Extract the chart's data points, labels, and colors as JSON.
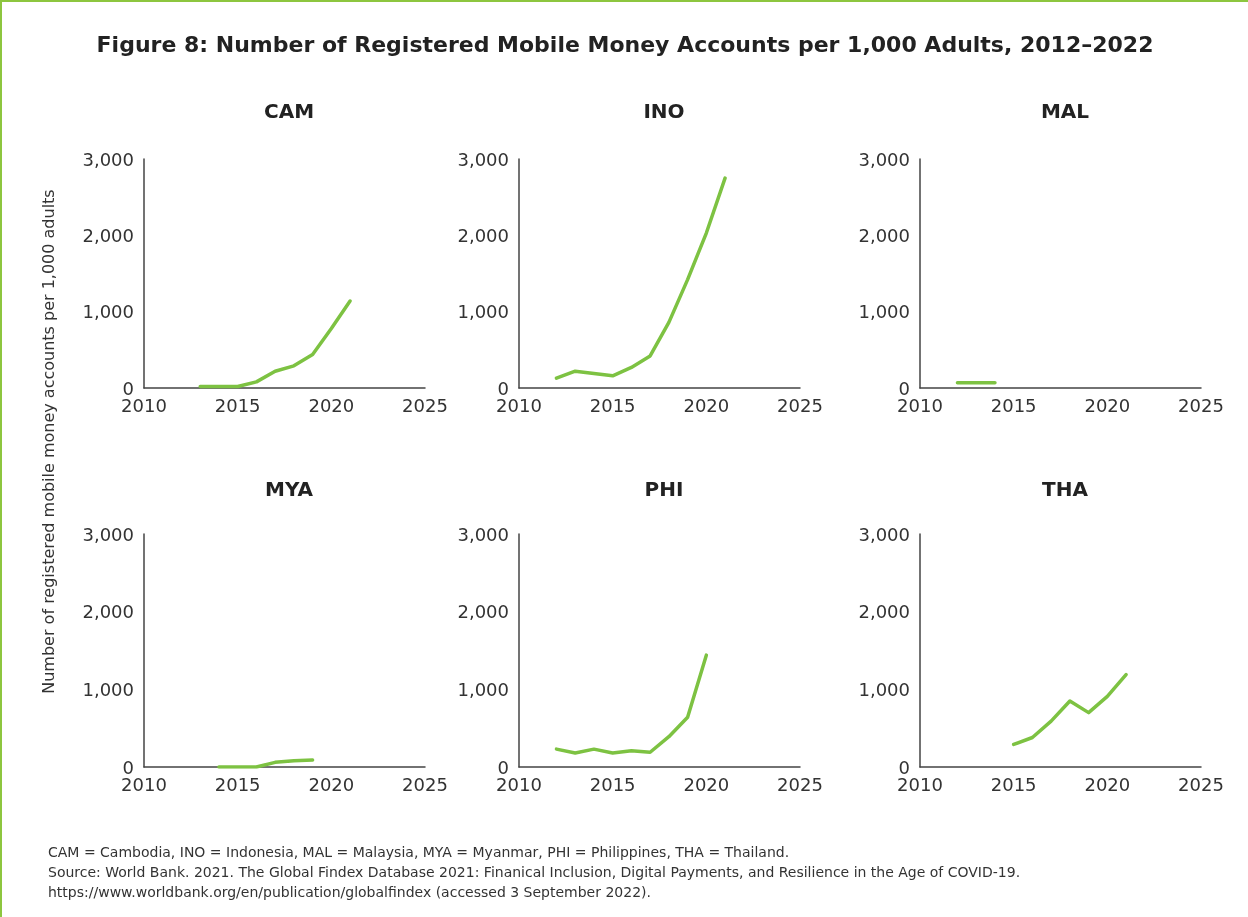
{
  "chart_data": [
    {
      "type": "other",
      "title": "Figure 8: Number of Registered Mobile Money Accounts per 1,000 Adults, 2012–2022"
    },
    {
      "type": "line",
      "title": "CAM",
      "ylabel": "Number of registered mobile money accounts per 1,000 adults",
      "x": [
        2013,
        2014,
        2015,
        2016,
        2017,
        2018,
        2019,
        2020,
        2021
      ],
      "values": [
        20,
        20,
        20,
        80,
        220,
        290,
        440,
        780,
        1140
      ],
      "color": "#7dc242",
      "xlim": [
        2010,
        2025
      ],
      "xticks": [
        2010,
        2015,
        2020,
        2025
      ],
      "ylim": [
        0,
        3000
      ],
      "yticks": [
        {
          "value": 0,
          "label": "0"
        },
        {
          "value": 1000,
          "label": "1,000"
        },
        {
          "value": 2000,
          "label": "2,000"
        },
        {
          "value": 3000,
          "label": "3,000"
        }
      ],
      "grid": false
    },
    {
      "type": "line",
      "title": "INO",
      "x": [
        2012,
        2013,
        2014,
        2015,
        2016,
        2017,
        2018,
        2019,
        2020,
        2021
      ],
      "values": [
        130,
        220,
        190,
        160,
        270,
        420,
        860,
        1420,
        2030,
        2750
      ],
      "color": "#7dc242",
      "xlim": [
        2010,
        2025
      ],
      "xticks": [
        2010,
        2015,
        2020,
        2025
      ],
      "ylim": [
        0,
        3000
      ],
      "yticks": [
        {
          "value": 0,
          "label": "0"
        },
        {
          "value": 1000,
          "label": "1,000"
        },
        {
          "value": 2000,
          "label": "2,000"
        },
        {
          "value": 3000,
          "label": "3,000"
        }
      ],
      "grid": false
    },
    {
      "type": "line",
      "title": "MAL",
      "x": [
        2012,
        2013,
        2014
      ],
      "values": [
        70,
        70,
        70
      ],
      "color": "#7dc242",
      "xlim": [
        2010,
        2025
      ],
      "xticks": [
        2010,
        2015,
        2020,
        2025
      ],
      "ylim": [
        0,
        3000
      ],
      "yticks": [
        {
          "value": 0,
          "label": "0"
        },
        {
          "value": 1000,
          "label": "1,000"
        },
        {
          "value": 2000,
          "label": "2,000"
        },
        {
          "value": 3000,
          "label": "3,000"
        }
      ],
      "grid": false
    },
    {
      "type": "line",
      "title": "MYA",
      "x": [
        2014,
        2015,
        2016,
        2017,
        2018,
        2019
      ],
      "values": [
        0,
        0,
        0,
        60,
        80,
        90
      ],
      "color": "#7dc242",
      "xlim": [
        2010,
        2025
      ],
      "xticks": [
        2010,
        2015,
        2020,
        2025
      ],
      "ylim": [
        0,
        3000
      ],
      "yticks": [
        {
          "value": 0,
          "label": "0"
        },
        {
          "value": 1000,
          "label": "1,000"
        },
        {
          "value": 2000,
          "label": "2,000"
        },
        {
          "value": 3000,
          "label": "3,000"
        }
      ],
      "grid": false
    },
    {
      "type": "line",
      "title": "PHI",
      "x": [
        2012,
        2013,
        2014,
        2015,
        2016,
        2017,
        2018,
        2019,
        2020
      ],
      "values": [
        230,
        180,
        230,
        180,
        210,
        190,
        390,
        640,
        1440
      ],
      "color": "#7dc242",
      "xlim": [
        2010,
        2025
      ],
      "xticks": [
        2010,
        2015,
        2020,
        2025
      ],
      "ylim": [
        0,
        3000
      ],
      "yticks": [
        {
          "value": 0,
          "label": "0"
        },
        {
          "value": 1000,
          "label": "1,000"
        },
        {
          "value": 2000,
          "label": "2,000"
        },
        {
          "value": 3000,
          "label": "3,000"
        }
      ],
      "grid": false
    },
    {
      "type": "line",
      "title": "THA",
      "x": [
        2015,
        2016,
        2017,
        2018,
        2019,
        2020,
        2021
      ],
      "values": [
        290,
        380,
        590,
        850,
        700,
        910,
        1190
      ],
      "color": "#7dc242",
      "xlim": [
        2010,
        2025
      ],
      "xticks": [
        2010,
        2015,
        2020,
        2025
      ],
      "ylim": [
        0,
        3000
      ],
      "yticks": [
        {
          "value": 0,
          "label": "0"
        },
        {
          "value": 1000,
          "label": "1,000"
        },
        {
          "value": 2000,
          "label": "2,000"
        },
        {
          "value": 3000,
          "label": "3,000"
        }
      ],
      "grid": false
    },
    {
      "type": "other",
      "annotations": [
        "CAM = Cambodia, INO = Indonesia, MAL = Malaysia, MYA = Myanmar, PHI = Philippines, THA = Thailand.",
        "Source: World Bank. 2021. The Global Findex Database 2021: Finanical Inclusion, Digital Payments, and Resilience in the Age of COVID-19.",
        "https://www.worldbank.org/en/publication/globalfindex (accessed 3 September 2022)."
      ]
    }
  ]
}
